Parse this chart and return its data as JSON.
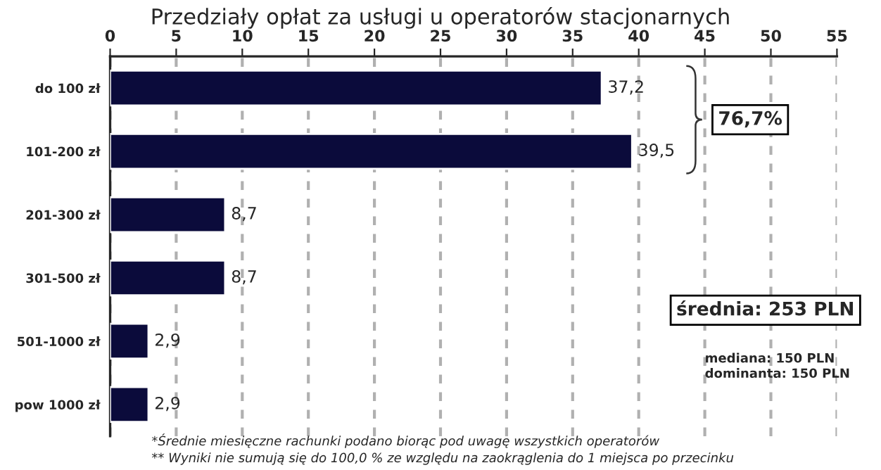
{
  "chart_data": {
    "type": "bar",
    "orientation": "horizontal",
    "title": "Przedziały opłat za usługi u operatorów stacjonarnych",
    "categories": [
      "do 100 zł",
      "101-200 zł",
      "201-300 zł",
      "301-500 zł",
      "501-1000 zł",
      "pow 1000 zł"
    ],
    "values": [
      37.2,
      39.5,
      8.7,
      8.7,
      2.9,
      2.9
    ],
    "value_labels": [
      "37,2",
      "39,5",
      "8,7",
      "8,7",
      "2,9",
      "2,9"
    ],
    "color": "#0b0b3b",
    "xlim": [
      0,
      55
    ],
    "xticks": [
      0,
      5,
      10,
      15,
      20,
      25,
      30,
      35,
      40,
      45,
      50,
      55
    ],
    "grid": "x",
    "annotations": [
      "76,7%",
      "średnia: 253 PLN",
      "mediana: 150 PLN\ndominanta: 150 PLN",
      "*Średnie miesięczne rachunki podano biorąc pod uwagę wszystkich operatorów",
      "** Wyniki nie sumują się do 100,0 % ze względu na zaokrąglenia do 1 miejsca po przecinku"
    ]
  }
}
